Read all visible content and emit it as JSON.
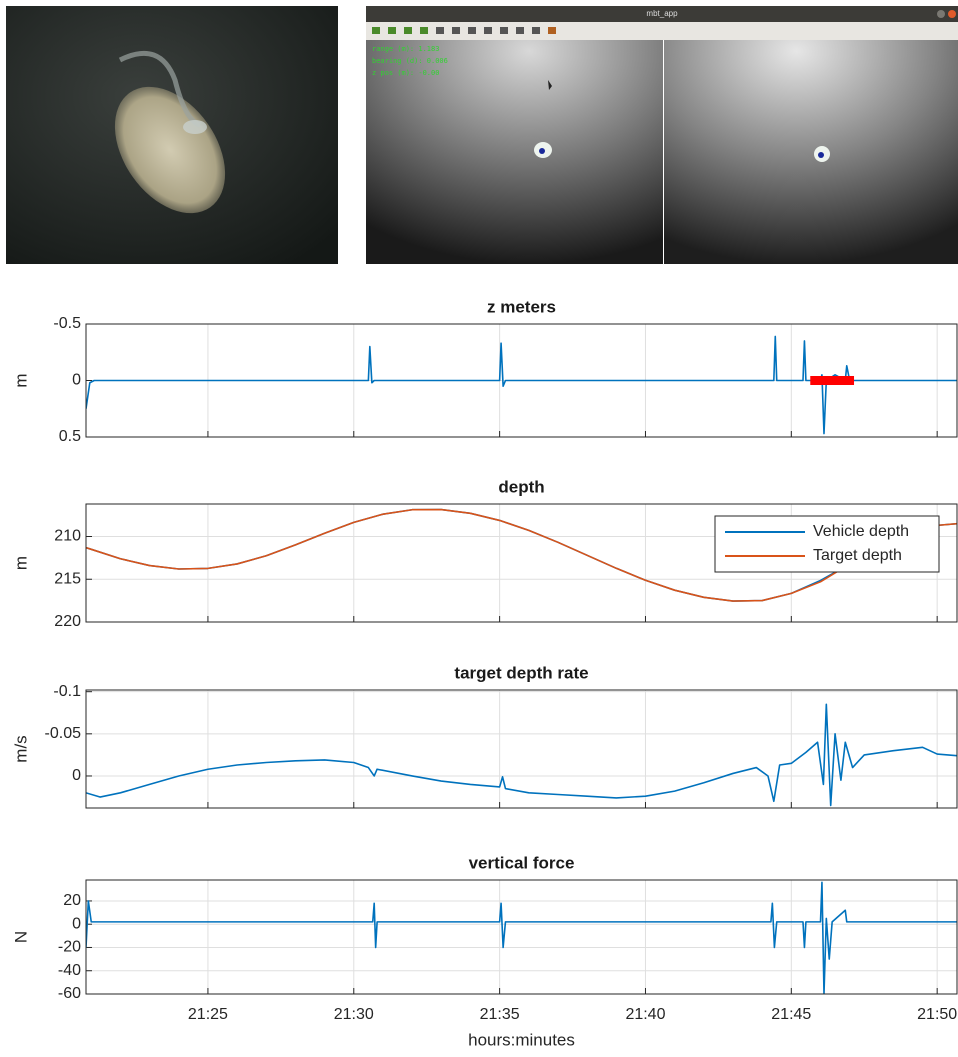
{
  "app_window": {
    "title": "mbt_app",
    "overlay_lines": [
      "range (m): 1.183",
      "bearing (d): 0.006",
      "z pos (m): -0.00"
    ]
  },
  "chart_data": [
    {
      "type": "line",
      "title": "z meters",
      "ylabel": "m",
      "x": [
        1280.82,
        1280.95,
        1281.1,
        1285,
        1290.5,
        1290.55,
        1290.62,
        1290.7,
        1295.0,
        1295.05,
        1295.12,
        1295.2,
        1303.5,
        1304.4,
        1304.45,
        1304.5,
        1304.6,
        1305.4,
        1305.45,
        1305.5,
        1306.0,
        1306.05,
        1306.12,
        1306.2,
        1306.5,
        1306.85,
        1306.9,
        1307.0,
        1310.68
      ],
      "series": [
        {
          "color": "#0072bd",
          "values": [
            0.25,
            0.02,
            0,
            0,
            0,
            -0.3,
            0.02,
            0,
            0,
            -0.33,
            0.05,
            0,
            0,
            0,
            -0.39,
            0,
            0,
            0,
            -0.35,
            0,
            0,
            -0.05,
            0.47,
            0,
            -0.05,
            0,
            -0.13,
            0,
            0
          ]
        },
        {
          "color": "#ff0000",
          "line_width": 9,
          "x": [
            1305.65,
            1307.15
          ],
          "values": [
            0,
            0
          ]
        }
      ],
      "xlim": [
        1280.82,
        1310.68
      ],
      "xticks": [
        1285,
        1290,
        1295,
        1300,
        1305,
        1310
      ],
      "ylim": [
        -0.5,
        0.5
      ],
      "yticks": [
        -0.5,
        0,
        0.5
      ],
      "y_reversed": true,
      "grid": true
    },
    {
      "type": "line",
      "title": "depth",
      "ylabel": "m",
      "legend": "upper right",
      "x": [
        1280.82,
        1281,
        1282,
        1283,
        1284,
        1285,
        1286,
        1287,
        1288,
        1289,
        1290,
        1291,
        1292,
        1293,
        1294,
        1295,
        1296,
        1297,
        1298,
        1299,
        1300,
        1301,
        1302,
        1303,
        1304,
        1305,
        1306,
        1307,
        1308,
        1309,
        1310,
        1310.68
      ],
      "series": [
        {
          "name": "Vehicle depth",
          "color": "#0072bd",
          "values": [
            211.3,
            211.5,
            212.6,
            213.4,
            213.8,
            213.73,
            213.21,
            212.25,
            210.98,
            209.62,
            208.35,
            207.39,
            206.87,
            206.85,
            207.29,
            208.12,
            209.28,
            210.68,
            212.2,
            213.72,
            215.12,
            216.28,
            217.11,
            217.55,
            217.49,
            216.65,
            215.14,
            213.23,
            211.28,
            209.68,
            208.7,
            208.5
          ]
        },
        {
          "name": "Target depth",
          "color": "#d95319",
          "values": [
            211.3,
            211.5,
            212.6,
            213.4,
            213.8,
            213.73,
            213.21,
            212.25,
            210.98,
            209.62,
            208.35,
            207.39,
            206.87,
            206.85,
            207.29,
            208.12,
            209.28,
            210.68,
            212.2,
            213.72,
            215.12,
            216.28,
            217.11,
            217.55,
            217.49,
            216.65,
            215.3,
            213.23,
            211.28,
            209.68,
            208.7,
            208.5
          ]
        }
      ],
      "xlim": [
        1280.82,
        1310.68
      ],
      "xticks": [
        1285,
        1290,
        1295,
        1300,
        1305,
        1310
      ],
      "ylim": [
        206.2,
        220
      ],
      "yticks": [
        210,
        215,
        220
      ],
      "y_reversed": true,
      "grid": true
    },
    {
      "type": "line",
      "title": "target depth rate",
      "ylabel": "m/s",
      "x": [
        1280.82,
        1281.3,
        1282,
        1283,
        1284,
        1285,
        1286,
        1287,
        1288,
        1289,
        1290,
        1290.5,
        1290.7,
        1290.8,
        1292,
        1293,
        1294,
        1295,
        1295.1,
        1295.2,
        1296,
        1297,
        1298,
        1299,
        1300,
        1301,
        1302,
        1303,
        1303.8,
        1304.2,
        1304.4,
        1304.6,
        1305,
        1305.5,
        1305.9,
        1306.1,
        1306.2,
        1306.35,
        1306.5,
        1306.7,
        1306.85,
        1307.1,
        1307.5,
        1308.5,
        1309.5,
        1310,
        1310.68
      ],
      "series": [
        {
          "color": "#0072bd",
          "values": [
            0.02,
            0.025,
            0.02,
            0.01,
            0,
            -0.008,
            -0.013,
            -0.016,
            -0.018,
            -0.019,
            -0.016,
            -0.01,
            0,
            -0.008,
            0,
            0.006,
            0.01,
            0.013,
            0.001,
            0.015,
            0.02,
            0.022,
            0.024,
            0.026,
            0.024,
            0.018,
            0.008,
            -0.003,
            -0.01,
            0,
            0.03,
            -0.013,
            -0.015,
            -0.028,
            -0.04,
            0.01,
            -0.085,
            0.035,
            -0.05,
            0.005,
            -0.04,
            -0.01,
            -0.025,
            -0.03,
            -0.034,
            -0.026,
            -0.024
          ]
        }
      ],
      "xlim": [
        1280.82,
        1310.68
      ],
      "xticks": [
        1285,
        1290,
        1295,
        1300,
        1305,
        1310
      ],
      "ylim": [
        -0.102,
        0.038
      ],
      "yticks": [
        -0.1,
        -0.05,
        0
      ],
      "y_reversed": true,
      "grid": true
    },
    {
      "type": "line",
      "title": "vertical force",
      "ylabel": "N",
      "xlabel": "hours:minutes",
      "x": [
        1280.82,
        1280.9,
        1281,
        1285,
        1290.65,
        1290.7,
        1290.75,
        1290.8,
        1295,
        1295.05,
        1295.12,
        1295.2,
        1304.3,
        1304.35,
        1304.42,
        1304.5,
        1305.4,
        1305.45,
        1305.5,
        1306,
        1306.05,
        1306.12,
        1306.2,
        1306.3,
        1306.4,
        1306.85,
        1306.9,
        1310.68
      ],
      "series": [
        {
          "color": "#0072bd",
          "values": [
            -20,
            20,
            2,
            2,
            2,
            18,
            -20,
            2,
            2,
            18,
            -20,
            2,
            2,
            18,
            -20,
            2,
            2,
            -20,
            2,
            2,
            36,
            -60,
            5,
            -30,
            2,
            12,
            2,
            2
          ]
        }
      ],
      "xlim": [
        1280.82,
        1310.68
      ],
      "xticks": [
        {
          "value": 1285,
          "label": "21:25"
        },
        {
          "value": 1290,
          "label": "21:30"
        },
        {
          "value": 1295,
          "label": "21:35"
        },
        {
          "value": 1300,
          "label": "21:40"
        },
        {
          "value": 1305,
          "label": "21:45"
        },
        {
          "value": 1310,
          "label": "21:50"
        }
      ],
      "ylim": [
        -60,
        38
      ],
      "yticks": [
        20,
        0,
        -20,
        -40,
        -60
      ],
      "grid": true
    }
  ]
}
